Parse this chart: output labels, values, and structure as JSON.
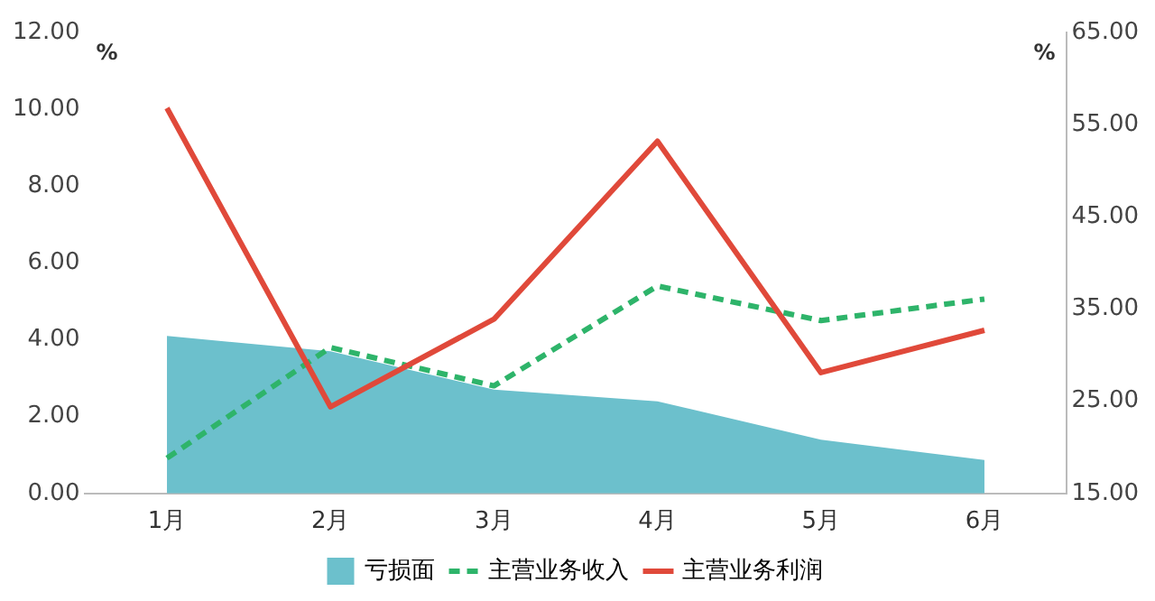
{
  "chart_data": {
    "type": "line",
    "categories": [
      "1月",
      "2月",
      "3月",
      "4月",
      "5月",
      "6月"
    ],
    "ylabel": "%",
    "y2label": "%",
    "series": [
      {
        "name": "亏损面",
        "type": "area",
        "color": "#6cc0cc",
        "values": [
          4.1,
          3.7,
          2.7,
          2.4,
          1.4,
          0.87
        ]
      },
      {
        "name": "主营业务收入",
        "line_style": "dashed",
        "color": "#2eb46a",
        "values": [
          0.92,
          3.8,
          2.8,
          5.4,
          4.5,
          5.06
        ]
      },
      {
        "name": "主营业务利润",
        "axis": "y2",
        "color": "#e0493a",
        "values": [
          56.8,
          24.4,
          33.9,
          53.2,
          28.1,
          32.7
        ]
      }
    ],
    "ylim": [
      0,
      12
    ],
    "yticks": [
      {
        "value": 0,
        "label": "0.00"
      },
      {
        "value": 2,
        "label": "2.00"
      },
      {
        "value": 4,
        "label": "4.00"
      },
      {
        "value": 6,
        "label": "6.00"
      },
      {
        "value": 8,
        "label": "8.00"
      },
      {
        "value": 10,
        "label": "10.00"
      },
      {
        "value": 12,
        "label": "12.00"
      }
    ],
    "y2lim": [
      15,
      65
    ],
    "y2ticks": [
      {
        "value": 15,
        "label": "15.00"
      },
      {
        "value": 25,
        "label": "25.00"
      },
      {
        "value": 35,
        "label": "35.00"
      },
      {
        "value": 45,
        "label": "45.00"
      },
      {
        "value": 55,
        "label": "55.00"
      },
      {
        "value": 65,
        "label": "65.00"
      }
    ],
    "grid": false,
    "legend": "bottom",
    "marker": "none"
  }
}
